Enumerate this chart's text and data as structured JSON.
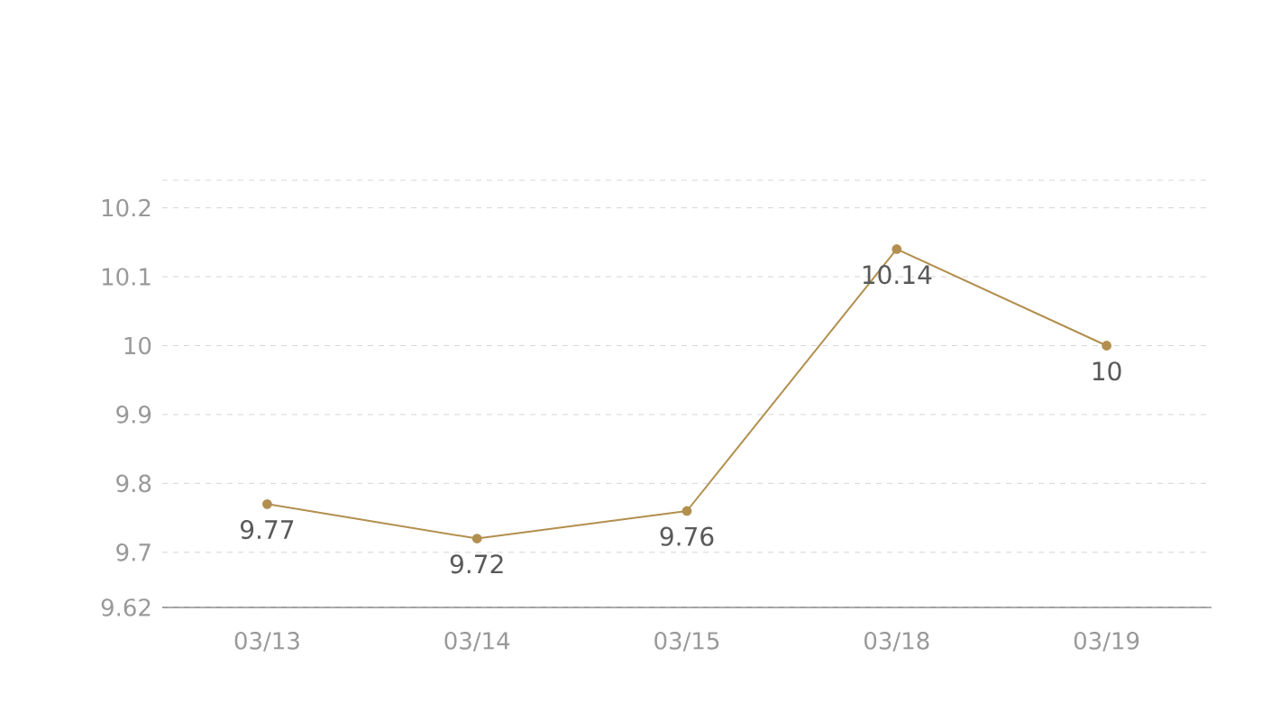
{
  "chart_data": {
    "type": "line",
    "categories": [
      "03/13",
      "03/14",
      "03/15",
      "03/18",
      "03/19"
    ],
    "series": [
      {
        "color": "#b38f4f",
        "values": [
          9.77,
          9.72,
          9.76,
          10.14,
          10
        ]
      }
    ],
    "ylim": [
      9.62,
      10.24
    ],
    "yticks": [
      9.62,
      9.7,
      9.8,
      9.9,
      10,
      10.1,
      10.2,
      {
        "value": 10.24,
        "label": null
      }
    ],
    "grid": "y",
    "marker": "circle",
    "data_labels": true
  }
}
